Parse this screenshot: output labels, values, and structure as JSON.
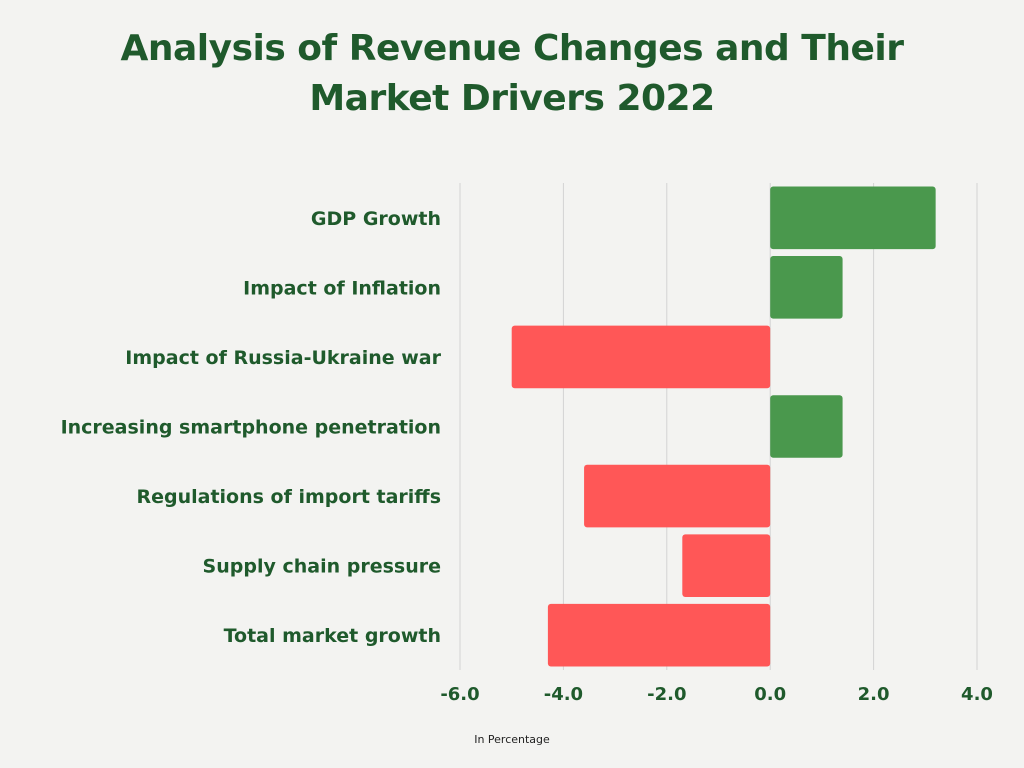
{
  "chart_data": {
    "type": "bar",
    "orientation": "horizontal",
    "title_lines": [
      "Analysis of Revenue Changes and Their",
      "Market Drivers 2022"
    ],
    "xlabel": "In Percentage",
    "ylabel": "",
    "categories": [
      "GDP Growth",
      "Impact of Inflation",
      "Impact of Russia-Ukraine war",
      "Increasing smartphone penetration",
      "Regulations of import tariffs",
      "Supply chain pressure",
      "Total market growth"
    ],
    "values": [
      3.2,
      1.4,
      -5.0,
      1.4,
      -3.6,
      -1.7,
      -4.3
    ],
    "xlim": [
      -6.0,
      4.0
    ],
    "xticks": [
      -6.0,
      -4.0,
      -2.0,
      0.0,
      2.0,
      4.0
    ],
    "xtick_labels": [
      "-6.0",
      "-4.0",
      "-2.0",
      "0.0",
      "2.0",
      "4.0"
    ],
    "grid": true,
    "legend": "none",
    "colors": {
      "positive": "#4a984d",
      "negative": "#ff5757",
      "text": "#1f5a2c",
      "grid": "#d3d3d3"
    }
  }
}
